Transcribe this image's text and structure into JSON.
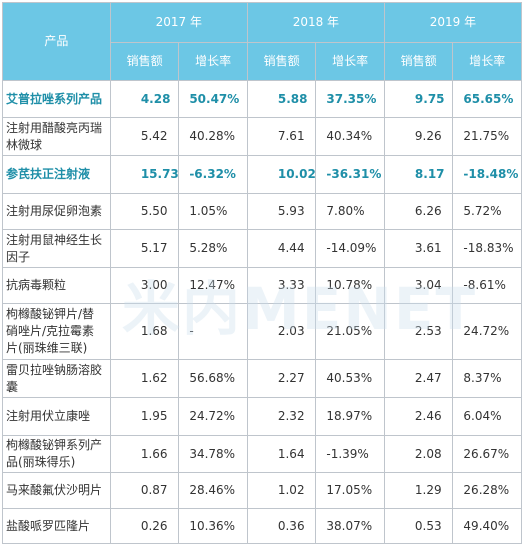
{
  "header": {
    "product": "产品",
    "years": [
      "2017 年",
      "2018 年",
      "2019 年"
    ],
    "sales": "销售额",
    "growth": "增长率"
  },
  "rows": [
    {
      "name": "艾普拉唑系列产品",
      "highlight": true,
      "values": [
        "4.28",
        "50.47%",
        "5.88",
        "37.35%",
        "9.75",
        "65.65%"
      ]
    },
    {
      "name": "注射用醋酸亮丙瑞林微球",
      "highlight": false,
      "values": [
        "5.42",
        "40.28%",
        "7.61",
        "40.34%",
        "9.26",
        "21.75%"
      ]
    },
    {
      "name": "参芪扶正注射液",
      "highlight": true,
      "values": [
        "15.73",
        "-6.32%",
        "10.02",
        "-36.31%",
        "8.17",
        "-18.48%"
      ]
    },
    {
      "name": "注射用尿促卵泡素",
      "highlight": false,
      "values": [
        "5.50",
        "1.05%",
        "5.93",
        "7.80%",
        "6.26",
        "5.72%"
      ]
    },
    {
      "name": "注射用鼠神经生长因子",
      "highlight": false,
      "values": [
        "5.17",
        "5.28%",
        "4.44",
        "-14.09%",
        "3.61",
        "-18.83%"
      ]
    },
    {
      "name": "抗病毒颗粒",
      "highlight": false,
      "values": [
        "3.00",
        "12.47%",
        "3.33",
        "10.78%",
        "3.04",
        "-8.61%"
      ]
    },
    {
      "name": "枸橼酸铋钾片/替硝唑片/克拉霉素片(丽珠维三联)",
      "highlight": false,
      "values": [
        "1.68",
        "-",
        "2.03",
        "21.05%",
        "2.53",
        "24.72%"
      ]
    },
    {
      "name": "雷贝拉唑钠肠溶胶囊",
      "highlight": false,
      "values": [
        "1.62",
        "56.68%",
        "2.27",
        "40.53%",
        "2.47",
        "8.37%"
      ]
    },
    {
      "name": "注射用伏立康唑",
      "highlight": false,
      "values": [
        "1.95",
        "24.72%",
        "2.32",
        "18.97%",
        "2.46",
        "6.04%"
      ]
    },
    {
      "name": "枸橼酸铋钾系列产品(丽珠得乐)",
      "highlight": false,
      "values": [
        "1.66",
        "34.78%",
        "1.64",
        "-1.39%",
        "2.08",
        "26.67%"
      ]
    },
    {
      "name": "马来酸氟伏沙明片",
      "highlight": false,
      "values": [
        "0.87",
        "28.46%",
        "1.02",
        "17.05%",
        "1.29",
        "26.28%"
      ]
    },
    {
      "name": "盐酸哌罗匹隆片",
      "highlight": false,
      "values": [
        "0.26",
        "10.36%",
        "0.36",
        "38.07%",
        "0.53",
        "49.40%"
      ]
    }
  ],
  "watermark": "米内MENET"
}
